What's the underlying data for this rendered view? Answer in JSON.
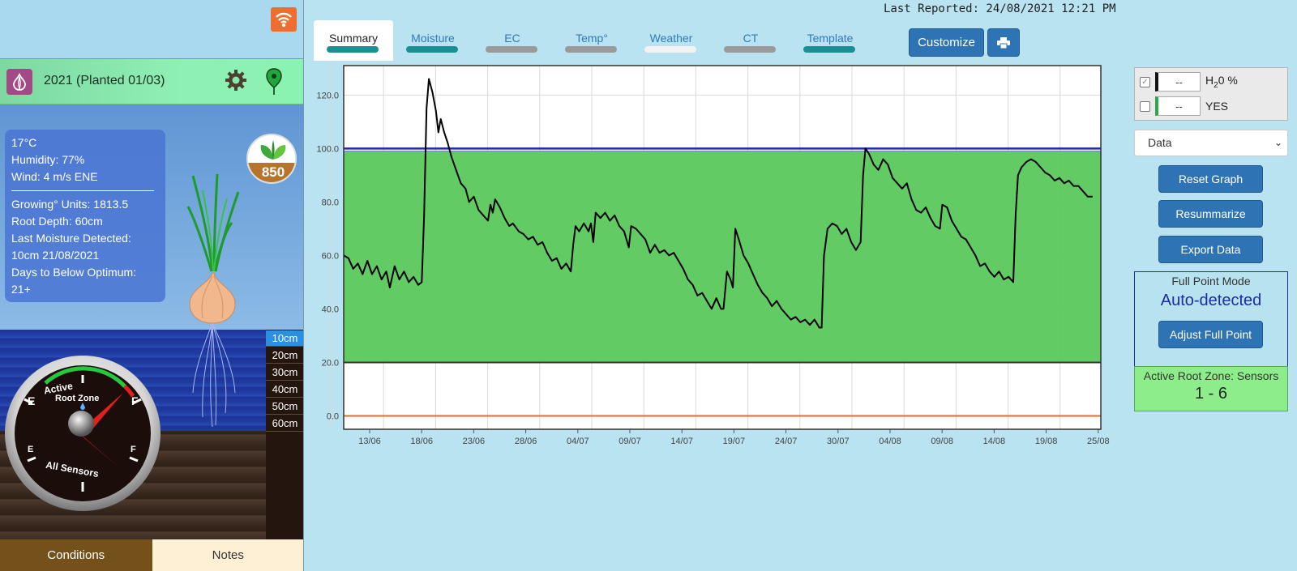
{
  "header": {
    "last_reported": "Last Reported: 24/08/2021 12:21 PM"
  },
  "crop": {
    "title": "2021 (Planted 01/03)"
  },
  "weather": {
    "temp": "17°C",
    "humidity": "Humidity: 77%",
    "wind": "Wind: 4 m/s ENE",
    "growing_units": "Growing° Units: 1813.5",
    "root_depth": "Root Depth: 60cm",
    "last_moisture_label": "Last Moisture Detected:",
    "last_moisture_value": "10cm  21/08/2021",
    "days_below_label": "Days to Below Optimum:",
    "days_below_value": "21+"
  },
  "badge_value": "850",
  "depths": [
    "10cm",
    "20cm",
    "30cm",
    "40cm",
    "50cm",
    "60cm"
  ],
  "gauge": {
    "top_label": "Active Root Zone",
    "bottom_label": "All Sensors",
    "empty": "E",
    "full": "F"
  },
  "bottom_tabs": {
    "conditions": "Conditions",
    "notes": "Notes"
  },
  "tabs": [
    {
      "label": "Summary",
      "bar_color": "#1a9095"
    },
    {
      "label": "Moisture",
      "bar_color": "#1a9095"
    },
    {
      "label": "EC",
      "bar_color": "#9a9a9a"
    },
    {
      "label": "Temp°",
      "bar_color": "#9a9a9a"
    },
    {
      "label": "Weather",
      "bar_color": "#f2f2f2"
    },
    {
      "label": "CT",
      "bar_color": "#9a9a9a"
    },
    {
      "label": "Template",
      "bar_color": "#1a9095"
    }
  ],
  "toolbar": {
    "customize": "Customize"
  },
  "legend": {
    "row1_value": "--",
    "row1_label_main": "H",
    "row1_label_sub": "2",
    "row1_label_rest": "0 %",
    "row2_value": "--",
    "row2_label": "YES"
  },
  "data_select": "Data",
  "buttons": {
    "reset": "Reset Graph",
    "resummarize": "Resummarize",
    "export": "Export Data",
    "adjust": "Adjust Full Point"
  },
  "full_point": {
    "title": "Full Point Mode",
    "value": "Auto-detected"
  },
  "root_zone": {
    "title": "Active Root Zone: Sensors",
    "value": "1 - 6"
  },
  "colors": {
    "optimum_band": "#5bc85b",
    "full_line": "#1e2aa8",
    "refill_line": "#333333",
    "zero_line": "#e86a2a",
    "series": "#000000"
  },
  "chart_data": {
    "type": "line",
    "ylim": [
      -5,
      131
    ],
    "yticks": [
      0,
      20,
      40,
      60,
      80,
      100,
      120
    ],
    "xtick_labels": [
      "13/06",
      "18/06",
      "23/06",
      "28/06",
      "04/07",
      "09/07",
      "14/07",
      "19/07",
      "24/07",
      "30/07",
      "04/08",
      "09/08",
      "14/08",
      "19/08",
      "25/08"
    ],
    "optimum_band": [
      20,
      99
    ],
    "full_point": 100,
    "zero_line": 0,
    "series": [
      {
        "values": [
          [
            0,
            60
          ],
          [
            0.4,
            59
          ],
          [
            0.8,
            55
          ],
          [
            1.2,
            57
          ],
          [
            1.6,
            53
          ],
          [
            2.0,
            58
          ],
          [
            2.4,
            53
          ],
          [
            2.8,
            56
          ],
          [
            3.2,
            51
          ],
          [
            3.6,
            54
          ],
          [
            3.9,
            48
          ],
          [
            4.3,
            56
          ],
          [
            4.7,
            51
          ],
          [
            5.1,
            54
          ],
          [
            5.5,
            50
          ],
          [
            5.9,
            52
          ],
          [
            6.3,
            49
          ],
          [
            6.6,
            50
          ],
          [
            6.8,
            75
          ],
          [
            7.0,
            115
          ],
          [
            7.2,
            126
          ],
          [
            7.5,
            121
          ],
          [
            7.8,
            114
          ],
          [
            8.0,
            106
          ],
          [
            8.2,
            111
          ],
          [
            8.5,
            106
          ],
          [
            8.8,
            102
          ],
          [
            9.1,
            97
          ],
          [
            9.5,
            92
          ],
          [
            9.9,
            87
          ],
          [
            10.3,
            85
          ],
          [
            10.6,
            80
          ],
          [
            11.0,
            82
          ],
          [
            11.4,
            77
          ],
          [
            11.8,
            75
          ],
          [
            12.2,
            73
          ],
          [
            12.4,
            79
          ],
          [
            12.6,
            76
          ],
          [
            12.8,
            81
          ],
          [
            13.2,
            78
          ],
          [
            13.6,
            74
          ],
          [
            14.0,
            71
          ],
          [
            14.3,
            72
          ],
          [
            14.8,
            69
          ],
          [
            15.2,
            68
          ],
          [
            15.6,
            66
          ],
          [
            16.0,
            67
          ],
          [
            16.4,
            64
          ],
          [
            16.8,
            65
          ],
          [
            17.2,
            61
          ],
          [
            17.6,
            58
          ],
          [
            18.0,
            59
          ],
          [
            18.4,
            55
          ],
          [
            18.8,
            57
          ],
          [
            19.2,
            54
          ],
          [
            19.4,
            64
          ],
          [
            19.6,
            71
          ],
          [
            19.9,
            69
          ],
          [
            20.3,
            72
          ],
          [
            20.7,
            69
          ],
          [
            20.9,
            72
          ],
          [
            21.1,
            65
          ],
          [
            21.3,
            76
          ],
          [
            21.7,
            74
          ],
          [
            22.1,
            76
          ],
          [
            22.5,
            73
          ],
          [
            22.9,
            75
          ],
          [
            23.3,
            71
          ],
          [
            23.7,
            69
          ],
          [
            24.1,
            63
          ],
          [
            24.3,
            71
          ],
          [
            24.7,
            70
          ],
          [
            25.1,
            68
          ],
          [
            25.5,
            66
          ],
          [
            25.9,
            61
          ],
          [
            26.3,
            64
          ],
          [
            26.7,
            61
          ],
          [
            27.1,
            62
          ],
          [
            27.5,
            60
          ],
          [
            27.9,
            61
          ],
          [
            28.3,
            58
          ],
          [
            28.7,
            55
          ],
          [
            29.1,
            51
          ],
          [
            29.5,
            49
          ],
          [
            29.9,
            45
          ],
          [
            30.3,
            46
          ],
          [
            30.7,
            43
          ],
          [
            31.1,
            40
          ],
          [
            31.5,
            44
          ],
          [
            31.9,
            40
          ],
          [
            32.1,
            40
          ],
          [
            32.4,
            54
          ],
          [
            32.7,
            51
          ],
          [
            32.9,
            48
          ],
          [
            33.1,
            70
          ],
          [
            33.4,
            66
          ],
          [
            33.8,
            60
          ],
          [
            34.2,
            57
          ],
          [
            34.6,
            53
          ],
          [
            35.0,
            49
          ],
          [
            35.4,
            46
          ],
          [
            35.8,
            44
          ],
          [
            36.2,
            41
          ],
          [
            36.6,
            43
          ],
          [
            37.0,
            40
          ],
          [
            37.4,
            38
          ],
          [
            37.8,
            36
          ],
          [
            38.2,
            37
          ],
          [
            38.6,
            35
          ],
          [
            39.0,
            36
          ],
          [
            39.4,
            34
          ],
          [
            39.8,
            36
          ],
          [
            40.2,
            33
          ],
          [
            40.4,
            33
          ],
          [
            40.6,
            60
          ],
          [
            40.9,
            70
          ],
          [
            41.3,
            72
          ],
          [
            41.7,
            71
          ],
          [
            42.1,
            68
          ],
          [
            42.5,
            70
          ],
          [
            42.9,
            65
          ],
          [
            43.3,
            62
          ],
          [
            43.7,
            65
          ],
          [
            43.9,
            90
          ],
          [
            44.1,
            100
          ],
          [
            44.4,
            98
          ],
          [
            44.8,
            94
          ],
          [
            45.2,
            92
          ],
          [
            45.6,
            96
          ],
          [
            46.0,
            94
          ],
          [
            46.4,
            89
          ],
          [
            46.8,
            87
          ],
          [
            47.2,
            85
          ],
          [
            47.6,
            87
          ],
          [
            48.0,
            81
          ],
          [
            48.4,
            77
          ],
          [
            48.8,
            76
          ],
          [
            49.2,
            78
          ],
          [
            49.6,
            74
          ],
          [
            50.0,
            71
          ],
          [
            50.4,
            70
          ],
          [
            50.6,
            79
          ],
          [
            51.0,
            78
          ],
          [
            51.4,
            73
          ],
          [
            51.8,
            70
          ],
          [
            52.2,
            67
          ],
          [
            52.6,
            66
          ],
          [
            53.0,
            63
          ],
          [
            53.4,
            60
          ],
          [
            53.8,
            56
          ],
          [
            54.2,
            57
          ],
          [
            54.6,
            54
          ],
          [
            55.0,
            52
          ],
          [
            55.4,
            54
          ],
          [
            55.8,
            51
          ],
          [
            56.2,
            52
          ],
          [
            56.6,
            50
          ],
          [
            56.8,
            75
          ],
          [
            57.0,
            90
          ],
          [
            57.3,
            93
          ],
          [
            57.7,
            95
          ],
          [
            58.1,
            96
          ],
          [
            58.5,
            95
          ],
          [
            58.9,
            93
          ],
          [
            59.3,
            91
          ],
          [
            59.7,
            90
          ],
          [
            60.1,
            88
          ],
          [
            60.5,
            89
          ],
          [
            60.9,
            87
          ],
          [
            61.3,
            88
          ],
          [
            61.7,
            86
          ],
          [
            62.1,
            86
          ],
          [
            62.5,
            84
          ],
          [
            62.9,
            82
          ],
          [
            63.3,
            82
          ]
        ]
      }
    ]
  }
}
